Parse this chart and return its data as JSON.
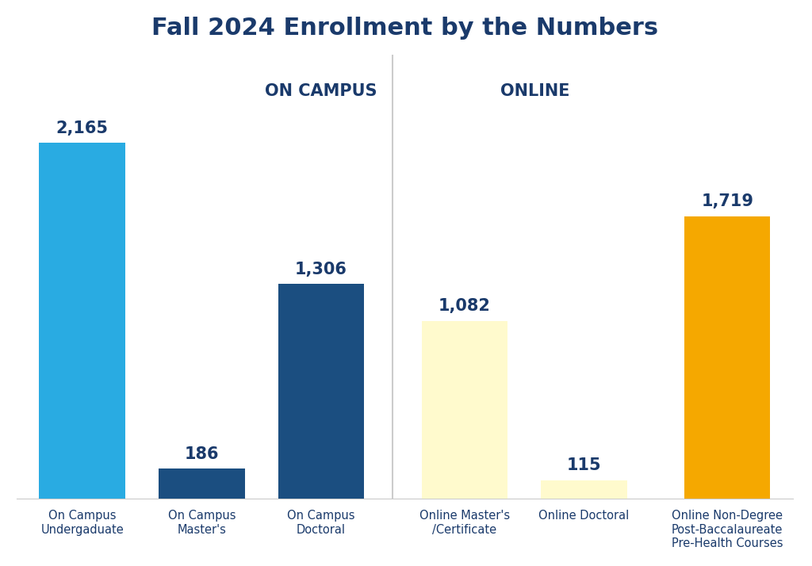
{
  "title": "Fall 2024 Enrollment by the Numbers",
  "title_fontsize": 22,
  "title_color": "#1a3a6b",
  "title_fontweight": "bold",
  "categories": [
    "On Campus\nUndergaduate",
    "On Campus\nMaster's",
    "On Campus\nDoctoral",
    "Online Master's\n/Certificate",
    "Online Doctoral",
    "Online Non-Degree\nPost-Baccalaureate\nPre-Health Courses"
  ],
  "values": [
    2165,
    186,
    1306,
    1082,
    115,
    1719
  ],
  "bar_colors": [
    "#29ABE2",
    "#1B4E80",
    "#1B4E80",
    "#FFFACD",
    "#FFFACD",
    "#F5A800"
  ],
  "value_labels": [
    "2,165",
    "186",
    "1,306",
    "1,082",
    "115",
    "1,719"
  ],
  "label_color": "#1a3a6b",
  "label_fontsize": 15,
  "label_fontweight": "bold",
  "xlabel_fontsize": 10.5,
  "xlabel_color": "#1a3a6b",
  "background_color": "#ffffff",
  "section_label_on_campus": "ON CAMPUS",
  "section_label_online": "ONLINE",
  "section_label_color": "#1a3a6b",
  "section_label_fontsize": 15,
  "section_label_fontweight": "bold",
  "divider_color": "#cccccc",
  "ylim": [
    0,
    2700
  ],
  "bar_width": 0.72,
  "x_positions": [
    0,
    1,
    2,
    3.2,
    4.2,
    5.4
  ],
  "xlim": [
    -0.55,
    5.95
  ]
}
